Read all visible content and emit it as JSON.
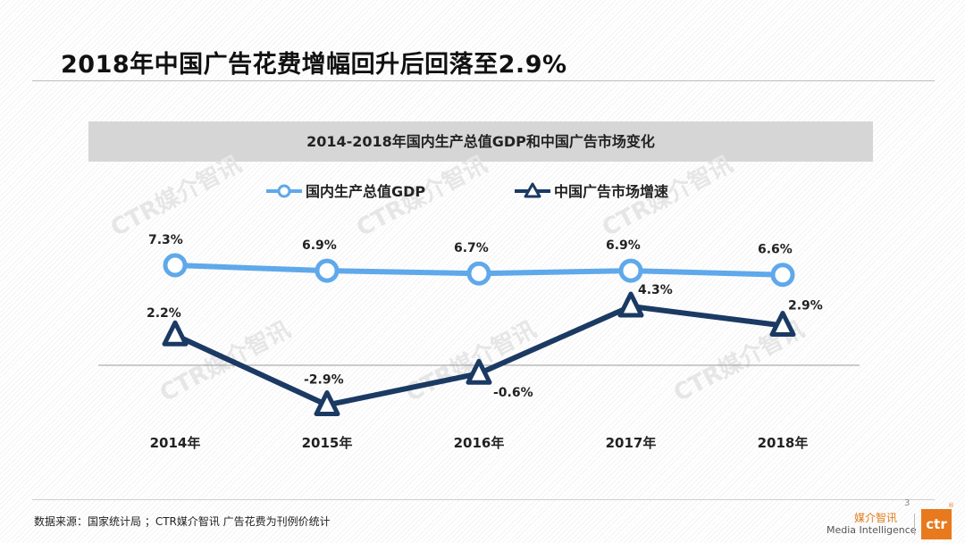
{
  "title": "2018年中国广告花费增幅回升后回落至2.9%",
  "source_note": "数据来源：国家统计局 ；CTR媒介智讯 广告花费为刊例价统计",
  "page_number": "3",
  "logo": {
    "cn": "媒介智讯",
    "en": "Media Intelligence",
    "mark": "ctr",
    "registered": "®"
  },
  "watermark_text": "CTR媒介智讯",
  "colors": {
    "gdp": "#5fa8ea",
    "ad": "#1b3a63",
    "accent": "#e8791d"
  },
  "chart_data": {
    "type": "line",
    "title": "2014-2018年国内生产总值GDP和中国广告市场变化",
    "categories": [
      "2014年",
      "2015年",
      "2016年",
      "2017年",
      "2018年"
    ],
    "series": [
      {
        "name": "国内生产总值GDP",
        "values": [
          7.3,
          6.9,
          6.7,
          6.9,
          6.6
        ],
        "labels": [
          "7.3%",
          "6.9%",
          "6.7%",
          "6.9%",
          "6.6%"
        ],
        "marker": "circle"
      },
      {
        "name": "中国广告市场增速",
        "values": [
          2.2,
          -2.9,
          -0.6,
          4.3,
          2.9
        ],
        "labels": [
          "2.2%",
          "-2.9%",
          "-0.6%",
          "4.3%",
          "2.9%"
        ],
        "marker": "triangle"
      }
    ],
    "legend_position": "top",
    "zero_line": true,
    "grid": false
  }
}
